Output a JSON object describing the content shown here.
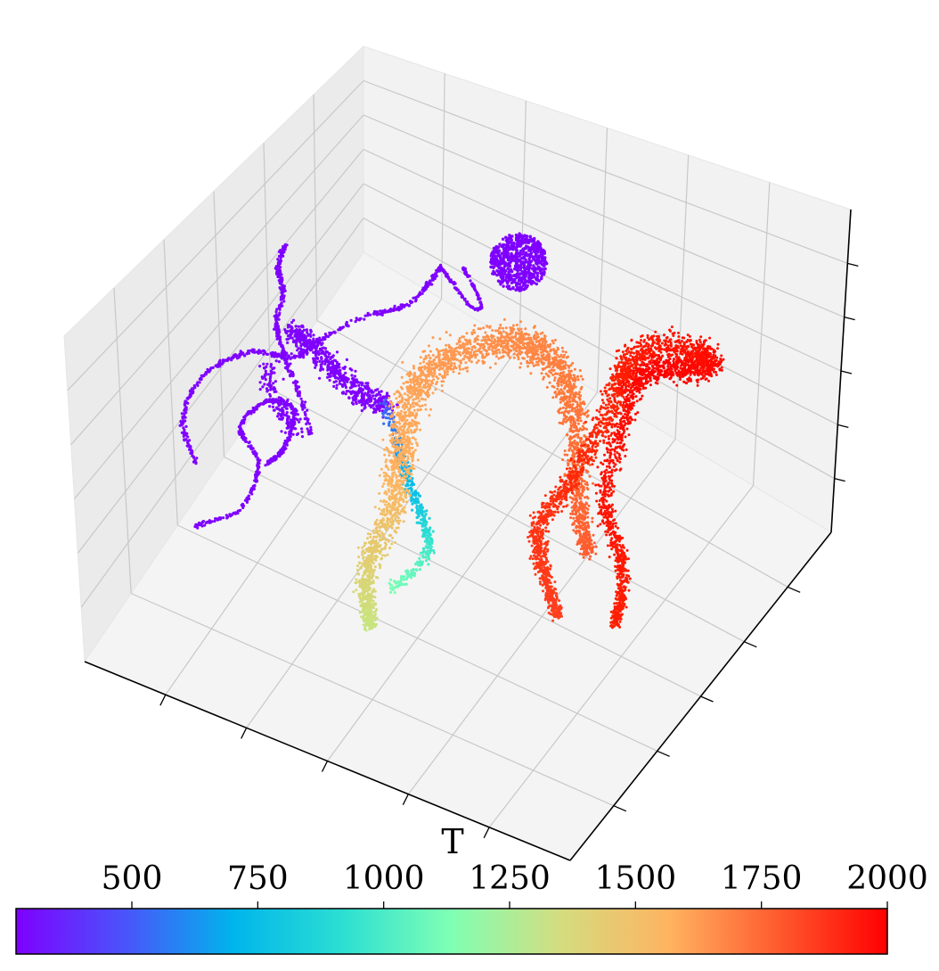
{
  "chart_data": {
    "type": "scatter",
    "projection": "3d",
    "axis_labels": {
      "x": "T",
      "y": "",
      "z": ""
    },
    "grid": true,
    "colormap": "rainbow",
    "colorbar": {
      "orientation": "horizontal",
      "placement": "bottom",
      "ticks": [
        500,
        750,
        1000,
        1250,
        1500,
        1750,
        2000
      ],
      "tick_labels": [
        "500",
        "750",
        "1000",
        "1250",
        "1500",
        "1750",
        "2000"
      ],
      "range": [
        270,
        2000
      ],
      "colors": [
        "#7f00ff",
        "#4a54fb",
        "#00b5eb",
        "#2cdfd2",
        "#80ffb4",
        "#d4dc7f",
        "#ffb360",
        "#ff5a2e",
        "#ff0000"
      ]
    },
    "clusters": [
      {
        "name": "",
        "T_range": [
          300,
          600
        ],
        "shape": "thin looping filaments",
        "color": "#7f00ff"
      },
      {
        "name": "",
        "T_range": [
          300,
          400
        ],
        "shape": "small sphere",
        "color": "#7f00ff"
      },
      {
        "name": "",
        "T_range": [
          700,
          1300
        ],
        "shape": "bridging strand",
        "color": "#2cb5eb"
      },
      {
        "name": "",
        "T_range": [
          1300,
          1800
        ],
        "shape": "curved band",
        "color": "#ff8040"
      },
      {
        "name": "",
        "T_range": [
          1850,
          2000
        ],
        "shape": "curved band",
        "color": "#ff2000"
      }
    ]
  }
}
